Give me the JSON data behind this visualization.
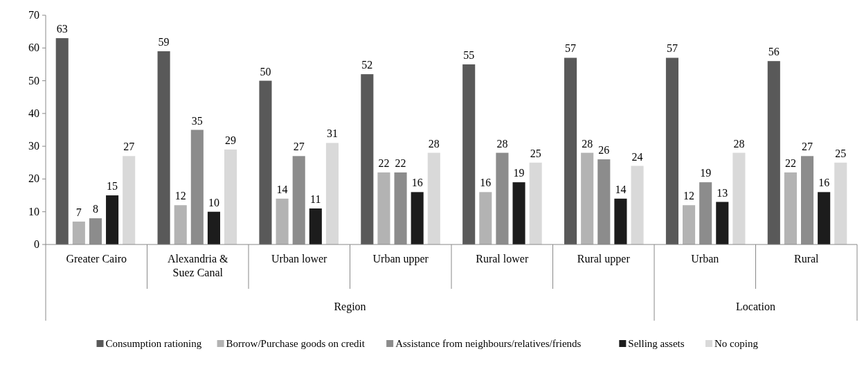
{
  "chart_data": {
    "type": "bar",
    "categories": [
      "Greater Cairo",
      "Alexandria & Suez Canal",
      "Urban lower",
      "Urban upper",
      "Rural lower",
      "Rural upper",
      "Urban",
      "Rural"
    ],
    "series": [
      {
        "name": "Consumption rationing",
        "color": "#595959",
        "values": [
          63,
          59,
          50,
          52,
          55,
          57,
          57,
          56
        ]
      },
      {
        "name": "Borrow/Purchase goods on credit",
        "color": "#b3b3b3",
        "values": [
          7,
          12,
          14,
          22,
          16,
          28,
          12,
          22
        ]
      },
      {
        "name": "Assistance from neighbours/relatives/friends",
        "color": "#8c8c8c",
        "values": [
          8,
          35,
          27,
          22,
          28,
          26,
          19,
          27
        ]
      },
      {
        "name": "Selling assets",
        "color": "#1c1c1c",
        "values": [
          15,
          10,
          11,
          16,
          19,
          14,
          13,
          16
        ]
      },
      {
        "name": "No coping",
        "color": "#d9d9d9",
        "values": [
          27,
          29,
          31,
          28,
          25,
          24,
          28,
          25
        ]
      }
    ],
    "ylim": [
      0,
      70
    ],
    "yticks": [
      0,
      10,
      20,
      30,
      40,
      50,
      60,
      70
    ],
    "grid": false,
    "legend": "bottom",
    "data_labels": true,
    "annotations": [
      "Region",
      "Location"
    ]
  }
}
